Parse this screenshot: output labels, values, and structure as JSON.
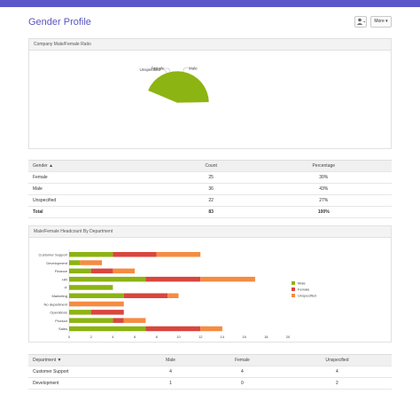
{
  "page": {
    "title": "Gender Profile"
  },
  "toolbar": {
    "user_icon_label": "▾",
    "more_label": "More ▾"
  },
  "panels": {
    "pie_title": "Company Male/Female Ratio",
    "bar_title": "Male/Female Headcount By Department"
  },
  "summary_table": {
    "headers": [
      "Gender ▲",
      "Count",
      "Percentage"
    ],
    "rows": [
      [
        "Female",
        "25",
        "30%"
      ],
      [
        "Male",
        "36",
        "43%"
      ],
      [
        "Unspecified",
        "22",
        "27%"
      ],
      [
        "Total",
        "83",
        "100%"
      ]
    ]
  },
  "dept_table": {
    "headers": [
      "Department ▼",
      "Male",
      "Female",
      "Unspecified"
    ],
    "rows": [
      [
        "Customer Support",
        "4",
        "4",
        "4"
      ],
      [
        "Development",
        "1",
        "0",
        "2"
      ]
    ]
  },
  "colors": {
    "male": "#8cb412",
    "female": "#d9463e",
    "unspecified": "#f58c42",
    "accent": "#5b57c9"
  },
  "chart_data": [
    {
      "type": "pie",
      "title": "Company Male/Female Ratio",
      "labels": [
        "Female",
        "Unspecified",
        "Male"
      ],
      "values": [
        25,
        22,
        36
      ]
    },
    {
      "type": "bar",
      "orientation": "horizontal",
      "stacked": true,
      "title": "Male/Female Headcount By Department",
      "categories": [
        "Customer Support",
        "Development",
        "Finance",
        "HR",
        "IT",
        "Marketing",
        "No department",
        "Operations",
        "Product",
        "Sales"
      ],
      "series": [
        {
          "name": "Male",
          "values": [
            4,
            1,
            2,
            7,
            4,
            5,
            0,
            2,
            4,
            7
          ]
        },
        {
          "name": "Female",
          "values": [
            4,
            0,
            2,
            5,
            0,
            4,
            0,
            3,
            1,
            5
          ]
        },
        {
          "name": "Unspecified",
          "values": [
            4,
            2,
            2,
            5,
            0,
            1,
            5,
            0,
            2,
            2
          ]
        }
      ],
      "xlim": [
        0,
        20
      ],
      "xticks": [
        0,
        2,
        4,
        6,
        8,
        10,
        12,
        14,
        16,
        18,
        20
      ],
      "legend": "right",
      "grid": false
    }
  ]
}
